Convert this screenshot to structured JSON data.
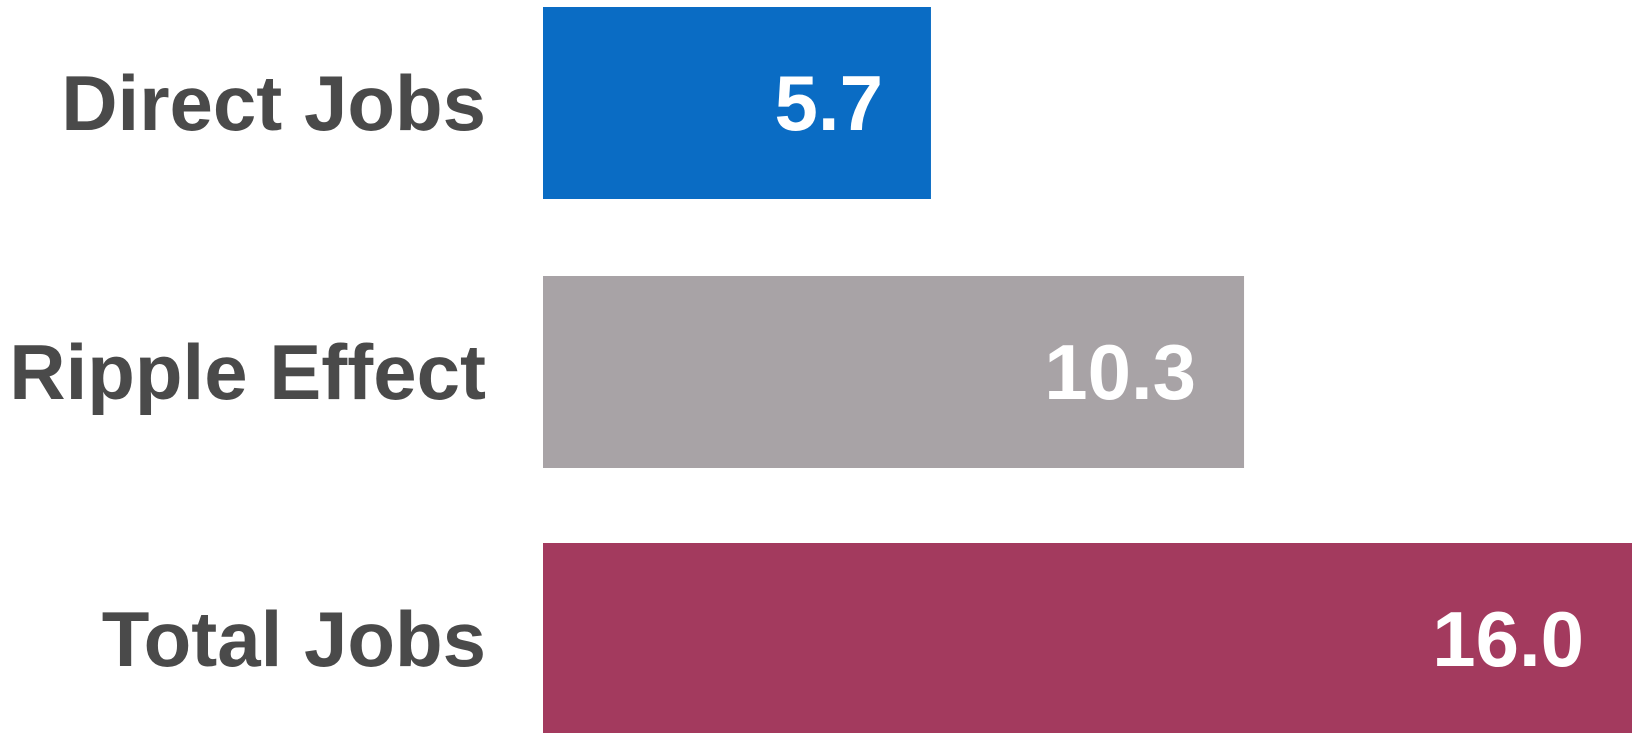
{
  "chart_data": {
    "type": "bar",
    "orientation": "horizontal",
    "categories": [
      "Direct Jobs",
      "Ripple Effect",
      "Total Jobs"
    ],
    "values": [
      5.7,
      10.3,
      16.0
    ],
    "value_labels": [
      "5.7",
      "10.3",
      "16.0"
    ],
    "colors": [
      "#0a6cc4",
      "#a8a3a6",
      "#a33a5e"
    ],
    "xlim": [
      0,
      16.0
    ],
    "grid": false,
    "legend": "none"
  }
}
